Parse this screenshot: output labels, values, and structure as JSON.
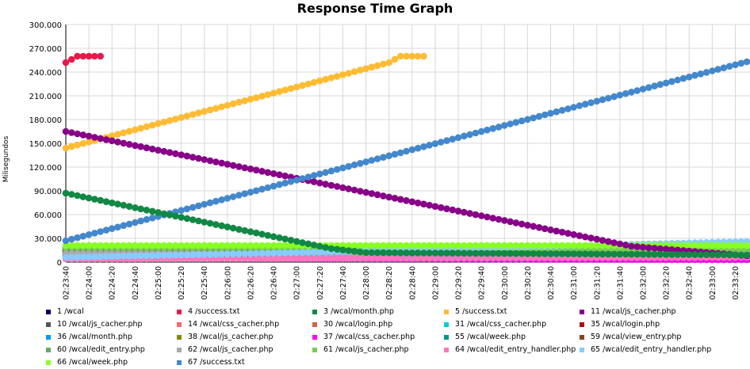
{
  "chart_data": {
    "type": "line",
    "title": "Response Time Graph",
    "xlabel": "",
    "ylabel": "Milisegundos",
    "ylim": [
      0,
      300000
    ],
    "yticks": [
      "0",
      "30.000",
      "60.000",
      "90.000",
      "120.000",
      "150.000",
      "180.000",
      "210.000",
      "240.000",
      "270.000",
      "300.000"
    ],
    "ytick_values": [
      0,
      30000,
      60000,
      90000,
      120000,
      150000,
      180000,
      210000,
      240000,
      270000,
      300000
    ],
    "x_ticks": [
      "02:23:40",
      "02:24:00",
      "02:24:20",
      "02:24:40",
      "02:25:00",
      "02:25:20",
      "02:25:40",
      "02:26:00",
      "02:26:20",
      "02:26:40",
      "02:27:00",
      "02:27:20",
      "02:27:40",
      "02:28:00",
      "02:28:20",
      "02:28:40",
      "02:29:00",
      "02:29:20",
      "02:29:40",
      "02:30:00",
      "02:30:20",
      "02:30:40",
      "02:31:00",
      "02:31:20",
      "02:31:40",
      "02:32:00",
      "02:32:20",
      "02:32:40",
      "02:33:00",
      "02:33:20"
    ],
    "x_tick_labels": [
      "02:23:40",
      "02:24:00",
      "02:24:20",
      "02:24:40",
      "02:25:00",
      "02:25:20",
      "02:25:40",
      "02:26:00",
      "02:26:20",
      "02:26:40",
      "02:27:00",
      "02:27:20",
      "02:27:40",
      "02:28:00",
      "02:28:20",
      "02:28:40",
      "02:29:00",
      "02:29:20",
      "02:29:40",
      "02:30:00",
      "02:30:20",
      "02:30:40",
      "02:31:00",
      "02:31:20",
      "02:31:40",
      "02:32:00",
      "02:32:20",
      "02:32:40",
      "02:33:00",
      "02:33:20"
    ],
    "grid": true,
    "legend_placement": "bottom",
    "series": [
      {
        "name": "1 /wcal",
        "color": "#000066",
        "points": [
          [
            "02:23:40",
            12000
          ],
          [
            "02:28:00",
            10000
          ],
          [
            "02:33:30",
            8000
          ]
        ]
      },
      {
        "name": "4 /success.txt",
        "color": "#e6194b",
        "points": [
          [
            "02:23:40",
            252000
          ],
          [
            "02:23:50",
            260000
          ],
          [
            "02:24:00",
            260000
          ],
          [
            "02:24:10",
            260000
          ]
        ]
      },
      {
        "name": "3 /wcal/month.php",
        "color": "#118844",
        "points": [
          [
            "02:23:40",
            87000
          ],
          [
            "02:27:30",
            17000
          ],
          [
            "02:28:00",
            12000
          ],
          [
            "02:33:30",
            9000
          ]
        ]
      },
      {
        "name": "5 /success.txt",
        "color": "#ffbb33",
        "points": [
          [
            "02:23:40",
            144000
          ],
          [
            "02:28:20",
            252000
          ],
          [
            "02:28:30",
            260000
          ],
          [
            "02:28:50",
            260000
          ]
        ]
      },
      {
        "name": "11 /wcal/js_cacher.php",
        "color": "#880088",
        "points": [
          [
            "02:23:40",
            165000
          ],
          [
            "02:31:50",
            20000
          ],
          [
            "02:33:30",
            8000
          ]
        ]
      },
      {
        "name": "10 /wcal/js_cacher.php",
        "color": "#555555",
        "points": [
          [
            "02:23:40",
            13000
          ],
          [
            "02:33:30",
            9000
          ]
        ]
      },
      {
        "name": "14 /wcal/css_cacher.php",
        "color": "#ff6666",
        "points": [
          [
            "02:23:40",
            10000
          ],
          [
            "02:33:30",
            4000
          ]
        ]
      },
      {
        "name": "30 /wcal/login.php",
        "color": "#cc6644",
        "points": [
          [
            "02:23:40",
            15000
          ],
          [
            "02:33:30",
            8000
          ]
        ]
      },
      {
        "name": "31 /wcal/css_cacher.php",
        "color": "#00cccc",
        "points": [
          [
            "02:23:40",
            6000
          ],
          [
            "02:33:30",
            6000
          ]
        ]
      },
      {
        "name": "35 /wcal/login.php",
        "color": "#aa1111",
        "points": [
          [
            "02:23:40",
            16000
          ],
          [
            "02:33:30",
            6000
          ]
        ]
      },
      {
        "name": "36 /wcal/month.php",
        "color": "#0099ff",
        "points": [
          [
            "02:23:40",
            7000
          ],
          [
            "02:33:30",
            10000
          ]
        ]
      },
      {
        "name": "38 /wcal/js_cacher.php",
        "color": "#888800",
        "points": [
          [
            "02:23:40",
            18000
          ],
          [
            "02:33:30",
            12000
          ]
        ]
      },
      {
        "name": "37 /wcal/css_cacher.php",
        "color": "#ff00ff",
        "points": [
          [
            "02:23:40",
            5000
          ],
          [
            "02:33:30",
            3000
          ]
        ]
      },
      {
        "name": "55 /wcal/week.php",
        "color": "#009988",
        "points": [
          [
            "02:23:40",
            9000
          ],
          [
            "02:33:30",
            14000
          ]
        ]
      },
      {
        "name": "59 /wcal/view_entry.php",
        "color": "#884422",
        "points": [
          [
            "02:23:40",
            14000
          ],
          [
            "02:33:30",
            11000
          ]
        ]
      },
      {
        "name": "60 /wcal/edit_entry.php",
        "color": "#66aa66",
        "points": [
          [
            "02:23:40",
            17000
          ],
          [
            "02:33:30",
            15000
          ]
        ]
      },
      {
        "name": "62 /wcal/js_cacher.php",
        "color": "#aaaaaa",
        "points": [
          [
            "02:23:40",
            11000
          ],
          [
            "02:33:30",
            10000
          ]
        ]
      },
      {
        "name": "61 /wcal/js_cacher.php",
        "color": "#77cc55",
        "points": [
          [
            "02:23:40",
            19000
          ],
          [
            "02:33:30",
            16000
          ]
        ]
      },
      {
        "name": "64 /wcal/edit_entry_handler.php",
        "color": "#ff77bb",
        "points": [
          [
            "02:23:40",
            4000
          ],
          [
            "02:33:30",
            6000
          ]
        ]
      },
      {
        "name": "65 /wcal/edit_entry_handler.php",
        "color": "#88ccff",
        "points": [
          [
            "02:23:40",
            6000
          ],
          [
            "02:27:00",
            12000
          ],
          [
            "02:33:30",
            26000
          ]
        ]
      },
      {
        "name": "66 /wcal/week.php",
        "color": "#88ff22",
        "points": [
          [
            "02:23:40",
            21000
          ],
          [
            "02:33:30",
            21000
          ]
        ]
      },
      {
        "name": "67 /success.txt",
        "color": "#4488cc",
        "points": [
          [
            "02:23:40",
            27000
          ],
          [
            "02:33:30",
            253000
          ]
        ]
      }
    ]
  }
}
